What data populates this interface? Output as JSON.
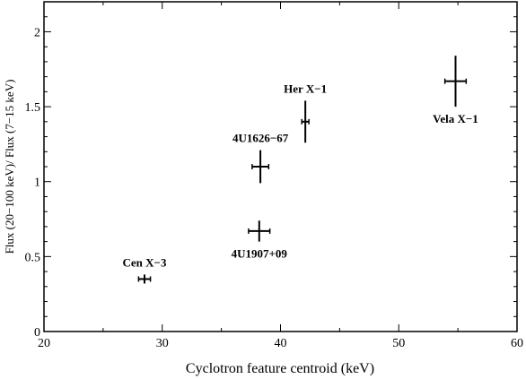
{
  "chart_data": {
    "type": "scatter",
    "title": "",
    "xlabel": "Cyclotron feature centroid (keV)",
    "ylabel": "Flux  (20−100 keV)/ Flux (7−15 keV)",
    "xlim": [
      20,
      60
    ],
    "ylim": [
      0,
      2.2
    ],
    "x_ticks": [
      20,
      30,
      40,
      50,
      60
    ],
    "y_ticks": [
      0,
      0.5,
      1,
      1.5,
      2
    ],
    "x_tick_labels": [
      "20",
      "30",
      "40",
      "50",
      "60"
    ],
    "y_tick_labels": [
      "0",
      "0.5",
      "1",
      "1.5",
      "2"
    ],
    "grid": false,
    "points": [
      {
        "label": "Cen X−3",
        "x": 28.5,
        "y": 0.35,
        "xerr": 0.5,
        "yerr": 0.03,
        "label_pos": "above"
      },
      {
        "label": "4U1907+09",
        "x": 38.2,
        "y": 0.67,
        "xerr": 0.9,
        "yerr": 0.07,
        "label_pos": "below"
      },
      {
        "label": "4U1626−67",
        "x": 38.3,
        "y": 1.1,
        "xerr": 0.7,
        "yerr": 0.11,
        "label_pos": "above"
      },
      {
        "label": "Her X−1",
        "x": 42.1,
        "y": 1.4,
        "xerr": 0.3,
        "yerr": 0.14,
        "label_pos": "above"
      },
      {
        "label": "Vela X−1",
        "x": 54.8,
        "y": 1.67,
        "xerr": 0.9,
        "yerr": 0.17,
        "label_pos": "below"
      }
    ]
  }
}
